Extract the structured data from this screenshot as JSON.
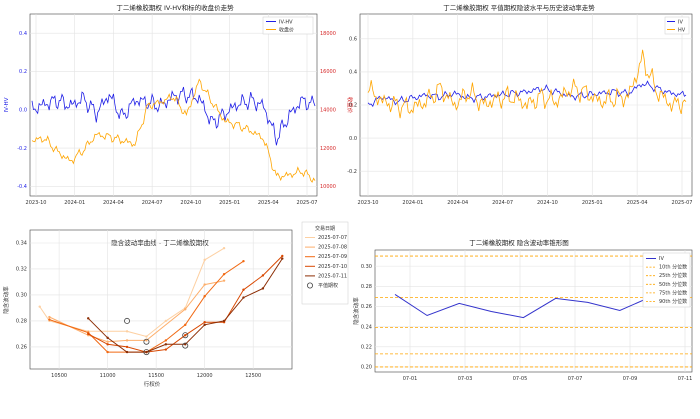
{
  "charts": {
    "c1": {
      "title": "丁二烯橡胶期权 IV-HV和标的收盘价走势",
      "ylabel_left": "IV-HV",
      "ylabel_right": "收盘价",
      "legend": [
        "IV-HV",
        "收盘价"
      ],
      "xticks": [
        "2023-10",
        "2024-01",
        "2024-04",
        "2024-07",
        "2024-10",
        "2025-01",
        "2025-04",
        "2025-07"
      ],
      "yticks_left": [
        "-0.4",
        "-0.2",
        "0.0",
        "0.2",
        "0.4"
      ],
      "yticks_right": [
        "10000",
        "12000",
        "14000",
        "16000",
        "18000"
      ]
    },
    "c2": {
      "title": "丁二烯橡胶期权 平值期权隐波水平与历史波动率走势",
      "legend": [
        "IV",
        "HV"
      ],
      "xticks": [
        "2023-10",
        "2024-01",
        "2024-04",
        "2024-07",
        "2024-10",
        "2025-01",
        "2025-04",
        "2025-07"
      ],
      "yticks": [
        "-0.2",
        "0.0",
        "0.2",
        "0.4",
        "0.6"
      ]
    },
    "c3": {
      "title": "隐含波动率曲线 - 丁二烯橡胶期权",
      "xlabel": "行权价",
      "ylabel": "隐含波动率",
      "legend_title": "交易日期",
      "legend": [
        "2025-07-07",
        "2025-07-08",
        "2025-07-09",
        "2025-07-10",
        "2025-07-11",
        "平值期权"
      ],
      "xticks": [
        "10500",
        "11000",
        "11500",
        "12000",
        "12500"
      ],
      "yticks": [
        "0.26",
        "0.28",
        "0.30",
        "0.32",
        "0.34"
      ]
    },
    "c4": {
      "title": "丁二烯橡胶期权 隐含波动率锥形图",
      "ylabel": "隐含波动率",
      "legend": [
        "IV",
        "10th 分位数",
        "25th 分位数",
        "50th 分位数",
        "75th 分位数",
        "90th 分位数"
      ],
      "xticks": [
        "07-01",
        "07-03",
        "07-05",
        "07-07",
        "07-09",
        "07-11"
      ],
      "yticks": [
        "0.20",
        "0.22",
        "0.24",
        "0.26",
        "0.28",
        "0.30"
      ]
    }
  },
  "chart_data": [
    {
      "type": "line",
      "title": "丁二烯橡胶期权 IV-HV和标的收盘价走势",
      "x": [
        "2023-09",
        "2023-10",
        "2023-11",
        "2023-12",
        "2024-01",
        "2024-02",
        "2024-03",
        "2024-04",
        "2024-05",
        "2024-06",
        "2024-07",
        "2024-08",
        "2024-09",
        "2024-10",
        "2024-11",
        "2024-12",
        "2025-01",
        "2025-02",
        "2025-03",
        "2025-04",
        "2025-05",
        "2025-06",
        "2025-07"
      ],
      "ylim": [
        -0.45,
        0.5
      ],
      "ylim_right": [
        9500,
        19000
      ],
      "series": [
        {
          "name": "IV-HV",
          "axis": "left",
          "color": "#1f1fe6",
          "values": [
            0.0,
            0.03,
            0.05,
            0.02,
            0.06,
            -0.02,
            0.08,
            -0.04,
            0.05,
            0.04,
            0.02,
            0.07,
            0.08,
            0.06,
            -0.07,
            -0.02,
            0.03,
            0.05,
            0.02,
            -0.15,
            -0.03,
            0.05,
            0.02
          ]
        },
        {
          "name": "收盘价",
          "axis": "right",
          "color": "#ffa500",
          "values": [
            12400,
            12500,
            11800,
            11300,
            11900,
            12700,
            12600,
            12400,
            12200,
            14200,
            14400,
            14700,
            13700,
            15500,
            14400,
            13400,
            13200,
            12900,
            12500,
            10500,
            10600,
            10800,
            10300
          ]
        }
      ]
    },
    {
      "type": "line",
      "title": "丁二烯橡胶期权 平值期权隐波水平与历史波动率走势",
      "x": [
        "2023-09",
        "2023-10",
        "2023-11",
        "2023-12",
        "2024-01",
        "2024-02",
        "2024-03",
        "2024-04",
        "2024-05",
        "2024-06",
        "2024-07",
        "2024-08",
        "2024-09",
        "2024-10",
        "2024-11",
        "2024-12",
        "2025-01",
        "2025-02",
        "2025-03",
        "2025-04",
        "2025-05",
        "2025-06",
        "2025-07"
      ],
      "ylim": [
        -0.35,
        0.75
      ],
      "series": [
        {
          "name": "IV",
          "color": "#1f1fe6",
          "values": [
            0.2,
            0.25,
            0.22,
            0.24,
            0.26,
            0.25,
            0.27,
            0.24,
            0.25,
            0.26,
            0.27,
            0.28,
            0.3,
            0.28,
            0.25,
            0.26,
            0.27,
            0.28,
            0.27,
            0.33,
            0.3,
            0.27,
            0.26
          ]
        },
        {
          "name": "HV",
          "color": "#ffa500",
          "values": [
            0.3,
            0.22,
            0.2,
            0.18,
            0.22,
            0.3,
            0.2,
            0.28,
            0.2,
            0.24,
            0.25,
            0.2,
            0.25,
            0.22,
            0.3,
            0.28,
            0.22,
            0.24,
            0.25,
            0.48,
            0.28,
            0.2,
            0.22
          ]
        }
      ]
    },
    {
      "type": "line",
      "title": "隐含波动率曲线 - 丁二烯橡胶期权",
      "xlabel": "行权价",
      "ylabel": "隐含波动率",
      "xlim": [
        10200,
        12900
      ],
      "ylim": [
        0.243,
        0.35
      ],
      "series": [
        {
          "name": "2025-07-07",
          "color": "#fdd0a2",
          "points": [
            [
              10300,
              0.291
            ],
            [
              10400,
              0.28
            ],
            [
              10800,
              0.272
            ],
            [
              11200,
              0.272
            ],
            [
              11400,
              0.268
            ],
            [
              11600,
              0.28
            ],
            [
              11800,
              0.29
            ],
            [
              12000,
              0.327
            ],
            [
              12200,
              0.336
            ]
          ]
        },
        {
          "name": "2025-07-08",
          "color": "#fdae6b",
          "points": [
            [
              10400,
              0.283
            ],
            [
              10800,
              0.269
            ],
            [
              11000,
              0.264
            ],
            [
              11200,
              0.265
            ],
            [
              11400,
              0.265
            ],
            [
              11800,
              0.289
            ],
            [
              12000,
              0.308
            ],
            [
              12200,
              0.311
            ]
          ]
        },
        {
          "name": "2025-07-09",
          "color": "#f16913",
          "points": [
            [
              10400,
              0.281
            ],
            [
              10800,
              0.271
            ],
            [
              11000,
              0.256
            ],
            [
              11400,
              0.256
            ],
            [
              11600,
              0.265
            ],
            [
              11800,
              0.277
            ],
            [
              12000,
              0.299
            ],
            [
              12200,
              0.316
            ],
            [
              12400,
              0.326
            ]
          ]
        },
        {
          "name": "2025-07-10",
          "color": "#d94801",
          "points": [
            [
              10800,
              0.27
            ],
            [
              11000,
              0.262
            ],
            [
              11200,
              0.26
            ],
            [
              11400,
              0.256
            ],
            [
              11600,
              0.258
            ],
            [
              11800,
              0.269
            ],
            [
              12000,
              0.279
            ],
            [
              12200,
              0.279
            ],
            [
              12400,
              0.304
            ],
            [
              12600,
              0.315
            ],
            [
              12800,
              0.33
            ]
          ]
        },
        {
          "name": "2025-07-11",
          "color": "#8c2d04",
          "points": [
            [
              10800,
              0.282
            ],
            [
              11000,
              0.267
            ],
            [
              11200,
              0.256
            ],
            [
              11400,
              0.256
            ],
            [
              11600,
              0.262
            ],
            [
              11800,
              0.262
            ],
            [
              12000,
              0.277
            ],
            [
              12200,
              0.28
            ],
            [
              12400,
              0.298
            ],
            [
              12600,
              0.305
            ],
            [
              12800,
              0.328
            ]
          ]
        }
      ],
      "atm_points": [
        [
          11200,
          0.28
        ],
        [
          11400,
          0.264
        ],
        [
          11400,
          0.256
        ],
        [
          11800,
          0.269
        ],
        [
          11800,
          0.261
        ]
      ]
    },
    {
      "type": "line",
      "title": "丁二烯橡胶期权 隐含波动率锥形图",
      "ylabel": "隐含波动率",
      "x": [
        "06-30",
        "07-01",
        "07-02",
        "07-03",
        "07-04",
        "07-07",
        "07-08",
        "07-09",
        "07-10",
        "07-11"
      ],
      "ylim": [
        0.195,
        0.316
      ],
      "series": [
        {
          "name": "IV",
          "color": "#3333cc",
          "values": [
            0.272,
            0.251,
            0.263,
            0.255,
            0.249,
            0.268,
            0.264,
            0.256,
            0.27,
            0.261
          ]
        }
      ],
      "percentiles": [
        {
          "name": "10th 分位数",
          "value": 0.2
        },
        {
          "name": "25th 分位数",
          "value": 0.213
        },
        {
          "name": "50th 分位数",
          "value": 0.239
        },
        {
          "name": "75th 分位数",
          "value": 0.269
        },
        {
          "name": "90th 分位数",
          "value": 0.31
        }
      ]
    }
  ]
}
